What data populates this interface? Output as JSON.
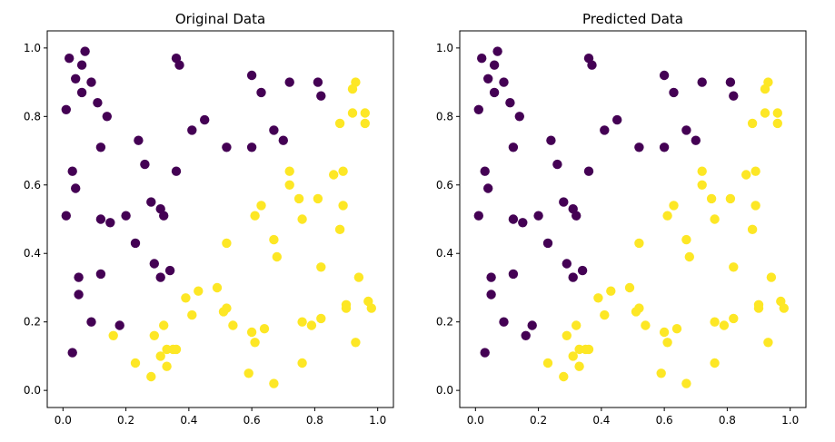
{
  "colors": {
    "class0": "#440154",
    "class1": "#fde725"
  },
  "chart_data": [
    {
      "type": "scatter",
      "title": "Original Data",
      "xlim": [
        -0.05,
        1.05
      ],
      "ylim": [
        -0.05,
        1.05
      ],
      "xticks": [
        "0.0",
        "0.2",
        "0.4",
        "0.6",
        "0.8",
        "1.0"
      ],
      "yticks": [
        "0.0",
        "0.2",
        "0.4",
        "0.6",
        "0.8",
        "1.0"
      ],
      "legend": "none",
      "grid": false,
      "points": [
        [
          0.02,
          0.97,
          0
        ],
        [
          0.07,
          0.99,
          0
        ],
        [
          0.06,
          0.95,
          0
        ],
        [
          0.04,
          0.91,
          0
        ],
        [
          0.09,
          0.9,
          0
        ],
        [
          0.06,
          0.87,
          0
        ],
        [
          0.11,
          0.84,
          0
        ],
        [
          0.01,
          0.82,
          0
        ],
        [
          0.14,
          0.8,
          0
        ],
        [
          0.12,
          0.71,
          0
        ],
        [
          0.24,
          0.73,
          0
        ],
        [
          0.26,
          0.66,
          0
        ],
        [
          0.03,
          0.64,
          0
        ],
        [
          0.04,
          0.59,
          0
        ],
        [
          0.01,
          0.51,
          0
        ],
        [
          0.12,
          0.5,
          0
        ],
        [
          0.15,
          0.49,
          0
        ],
        [
          0.2,
          0.51,
          0
        ],
        [
          0.28,
          0.55,
          0
        ],
        [
          0.31,
          0.53,
          0
        ],
        [
          0.32,
          0.51,
          0
        ],
        [
          0.36,
          0.97,
          0
        ],
        [
          0.37,
          0.95,
          0
        ],
        [
          0.36,
          0.64,
          0
        ],
        [
          0.41,
          0.76,
          0
        ],
        [
          0.45,
          0.79,
          0
        ],
        [
          0.52,
          0.71,
          0
        ],
        [
          0.6,
          0.92,
          0
        ],
        [
          0.63,
          0.87,
          0
        ],
        [
          0.6,
          0.71,
          0
        ],
        [
          0.67,
          0.76,
          0
        ],
        [
          0.7,
          0.73,
          0
        ],
        [
          0.72,
          0.9,
          0
        ],
        [
          0.81,
          0.9,
          0
        ],
        [
          0.82,
          0.86,
          0
        ],
        [
          0.23,
          0.43,
          0
        ],
        [
          0.29,
          0.37,
          0
        ],
        [
          0.31,
          0.33,
          0
        ],
        [
          0.34,
          0.35,
          0
        ],
        [
          0.05,
          0.33,
          0
        ],
        [
          0.05,
          0.28,
          0
        ],
        [
          0.12,
          0.34,
          0
        ],
        [
          0.09,
          0.2,
          0
        ],
        [
          0.18,
          0.19,
          0
        ],
        [
          0.03,
          0.11,
          0
        ],
        [
          0.16,
          0.16,
          1
        ],
        [
          0.23,
          0.08,
          1
        ],
        [
          0.28,
          0.04,
          1
        ],
        [
          0.29,
          0.16,
          1
        ],
        [
          0.31,
          0.1,
          1
        ],
        [
          0.32,
          0.19,
          1
        ],
        [
          0.33,
          0.12,
          1
        ],
        [
          0.35,
          0.12,
          1
        ],
        [
          0.36,
          0.12,
          1
        ],
        [
          0.33,
          0.07,
          1
        ],
        [
          0.39,
          0.27,
          1
        ],
        [
          0.41,
          0.22,
          1
        ],
        [
          0.43,
          0.29,
          1
        ],
        [
          0.49,
          0.3,
          1
        ],
        [
          0.51,
          0.23,
          1
        ],
        [
          0.52,
          0.24,
          1
        ],
        [
          0.52,
          0.43,
          1
        ],
        [
          0.54,
          0.19,
          1
        ],
        [
          0.59,
          0.05,
          1
        ],
        [
          0.6,
          0.17,
          1
        ],
        [
          0.61,
          0.14,
          1
        ],
        [
          0.64,
          0.18,
          1
        ],
        [
          0.61,
          0.51,
          1
        ],
        [
          0.63,
          0.54,
          1
        ],
        [
          0.67,
          0.44,
          1
        ],
        [
          0.68,
          0.39,
          1
        ],
        [
          0.67,
          0.02,
          1
        ],
        [
          0.72,
          0.64,
          1
        ],
        [
          0.72,
          0.6,
          1
        ],
        [
          0.75,
          0.56,
          1
        ],
        [
          0.76,
          0.5,
          1
        ],
        [
          0.76,
          0.2,
          1
        ],
        [
          0.76,
          0.08,
          1
        ],
        [
          0.79,
          0.19,
          1
        ],
        [
          0.81,
          0.56,
          1
        ],
        [
          0.82,
          0.36,
          1
        ],
        [
          0.82,
          0.21,
          1
        ],
        [
          0.86,
          0.63,
          1
        ],
        [
          0.89,
          0.64,
          1
        ],
        [
          0.89,
          0.54,
          1
        ],
        [
          0.88,
          0.47,
          1
        ],
        [
          0.88,
          0.78,
          1
        ],
        [
          0.92,
          0.81,
          1
        ],
        [
          0.93,
          0.9,
          1
        ],
        [
          0.92,
          0.88,
          1
        ],
        [
          0.96,
          0.81,
          1
        ],
        [
          0.96,
          0.78,
          1
        ],
        [
          0.94,
          0.33,
          1
        ],
        [
          0.9,
          0.25,
          1
        ],
        [
          0.9,
          0.24,
          1
        ],
        [
          0.97,
          0.26,
          1
        ],
        [
          0.98,
          0.24,
          1
        ],
        [
          0.93,
          0.14,
          1
        ]
      ]
    },
    {
      "type": "scatter",
      "title": "Predicted Data",
      "xlim": [
        -0.05,
        1.05
      ],
      "ylim": [
        -0.05,
        1.05
      ],
      "xticks": [
        "0.0",
        "0.2",
        "0.4",
        "0.6",
        "0.8",
        "1.0"
      ],
      "yticks": [
        "0.0",
        "0.2",
        "0.4",
        "0.6",
        "0.8",
        "1.0"
      ],
      "legend": "none",
      "grid": false,
      "points": [
        [
          0.02,
          0.97,
          0
        ],
        [
          0.07,
          0.99,
          0
        ],
        [
          0.06,
          0.95,
          0
        ],
        [
          0.04,
          0.91,
          0
        ],
        [
          0.09,
          0.9,
          0
        ],
        [
          0.06,
          0.87,
          0
        ],
        [
          0.11,
          0.84,
          0
        ],
        [
          0.01,
          0.82,
          0
        ],
        [
          0.14,
          0.8,
          0
        ],
        [
          0.12,
          0.71,
          0
        ],
        [
          0.24,
          0.73,
          0
        ],
        [
          0.26,
          0.66,
          0
        ],
        [
          0.03,
          0.64,
          0
        ],
        [
          0.04,
          0.59,
          0
        ],
        [
          0.01,
          0.51,
          0
        ],
        [
          0.12,
          0.5,
          0
        ],
        [
          0.15,
          0.49,
          0
        ],
        [
          0.2,
          0.51,
          0
        ],
        [
          0.28,
          0.55,
          0
        ],
        [
          0.31,
          0.53,
          0
        ],
        [
          0.32,
          0.51,
          0
        ],
        [
          0.36,
          0.97,
          0
        ],
        [
          0.37,
          0.95,
          0
        ],
        [
          0.36,
          0.64,
          0
        ],
        [
          0.41,
          0.76,
          0
        ],
        [
          0.45,
          0.79,
          0
        ],
        [
          0.52,
          0.71,
          0
        ],
        [
          0.6,
          0.92,
          0
        ],
        [
          0.63,
          0.87,
          0
        ],
        [
          0.6,
          0.71,
          0
        ],
        [
          0.67,
          0.76,
          0
        ],
        [
          0.7,
          0.73,
          0
        ],
        [
          0.72,
          0.9,
          0
        ],
        [
          0.81,
          0.9,
          0
        ],
        [
          0.82,
          0.86,
          0
        ],
        [
          0.23,
          0.43,
          0
        ],
        [
          0.29,
          0.37,
          0
        ],
        [
          0.31,
          0.33,
          0
        ],
        [
          0.34,
          0.35,
          0
        ],
        [
          0.05,
          0.33,
          0
        ],
        [
          0.05,
          0.28,
          0
        ],
        [
          0.12,
          0.34,
          0
        ],
        [
          0.09,
          0.2,
          0
        ],
        [
          0.18,
          0.19,
          0
        ],
        [
          0.03,
          0.11,
          0
        ],
        [
          0.16,
          0.16,
          0
        ],
        [
          0.23,
          0.08,
          1
        ],
        [
          0.28,
          0.04,
          1
        ],
        [
          0.29,
          0.16,
          1
        ],
        [
          0.31,
          0.1,
          1
        ],
        [
          0.32,
          0.19,
          1
        ],
        [
          0.33,
          0.12,
          1
        ],
        [
          0.35,
          0.12,
          1
        ],
        [
          0.36,
          0.12,
          1
        ],
        [
          0.33,
          0.07,
          1
        ],
        [
          0.39,
          0.27,
          1
        ],
        [
          0.41,
          0.22,
          1
        ],
        [
          0.43,
          0.29,
          1
        ],
        [
          0.49,
          0.3,
          1
        ],
        [
          0.51,
          0.23,
          1
        ],
        [
          0.52,
          0.24,
          1
        ],
        [
          0.52,
          0.43,
          1
        ],
        [
          0.54,
          0.19,
          1
        ],
        [
          0.59,
          0.05,
          1
        ],
        [
          0.6,
          0.17,
          1
        ],
        [
          0.61,
          0.14,
          1
        ],
        [
          0.64,
          0.18,
          1
        ],
        [
          0.61,
          0.51,
          1
        ],
        [
          0.63,
          0.54,
          1
        ],
        [
          0.67,
          0.44,
          1
        ],
        [
          0.68,
          0.39,
          1
        ],
        [
          0.67,
          0.02,
          1
        ],
        [
          0.72,
          0.64,
          1
        ],
        [
          0.72,
          0.6,
          1
        ],
        [
          0.75,
          0.56,
          1
        ],
        [
          0.76,
          0.5,
          1
        ],
        [
          0.76,
          0.2,
          1
        ],
        [
          0.76,
          0.08,
          1
        ],
        [
          0.79,
          0.19,
          1
        ],
        [
          0.81,
          0.56,
          1
        ],
        [
          0.82,
          0.36,
          1
        ],
        [
          0.82,
          0.21,
          1
        ],
        [
          0.86,
          0.63,
          1
        ],
        [
          0.89,
          0.64,
          1
        ],
        [
          0.89,
          0.54,
          1
        ],
        [
          0.88,
          0.47,
          1
        ],
        [
          0.88,
          0.78,
          1
        ],
        [
          0.92,
          0.81,
          1
        ],
        [
          0.93,
          0.9,
          1
        ],
        [
          0.92,
          0.88,
          1
        ],
        [
          0.96,
          0.81,
          1
        ],
        [
          0.96,
          0.78,
          1
        ],
        [
          0.94,
          0.33,
          1
        ],
        [
          0.9,
          0.25,
          1
        ],
        [
          0.9,
          0.24,
          1
        ],
        [
          0.97,
          0.26,
          1
        ],
        [
          0.98,
          0.24,
          1
        ],
        [
          0.93,
          0.14,
          1
        ]
      ]
    }
  ]
}
